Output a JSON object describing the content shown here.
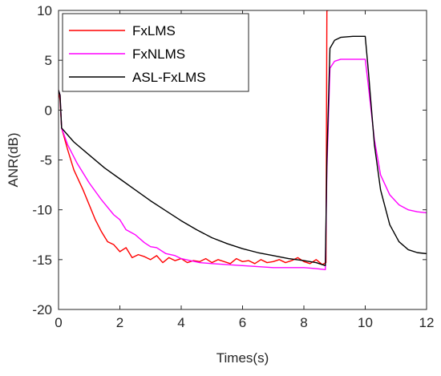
{
  "chart_data": {
    "type": "line",
    "xlabel": "Times(s)",
    "ylabel": "ANR(dB)",
    "xlim": [
      0,
      12
    ],
    "ylim": [
      -20,
      10
    ],
    "xticks": [
      0,
      2,
      4,
      6,
      8,
      10,
      12
    ],
    "yticks": [
      -20,
      -15,
      -10,
      -5,
      0,
      5,
      10
    ],
    "xtick_labels": [
      "0",
      "2",
      "4",
      "6",
      "8",
      "10",
      "12"
    ],
    "ytick_labels": [
      "-20",
      "-15",
      "-10",
      "-5",
      "0",
      "5",
      "10"
    ],
    "grid": false,
    "legend_position": "top-left",
    "series": [
      {
        "name": "FxLMS",
        "color": "#ff0000",
        "x": [
          0,
          0.05,
          0.1,
          0.3,
          0.5,
          0.8,
          1.0,
          1.2,
          1.4,
          1.6,
          1.8,
          2.0,
          2.2,
          2.4,
          2.6,
          2.8,
          3.0,
          3.2,
          3.4,
          3.6,
          3.8,
          4.0,
          4.2,
          4.4,
          4.6,
          4.8,
          5.0,
          5.2,
          5.4,
          5.6,
          5.8,
          6.0,
          6.2,
          6.4,
          6.6,
          6.8,
          7.0,
          7.2,
          7.4,
          7.6,
          7.8,
          8.0,
          8.2,
          8.4,
          8.6,
          8.72,
          8.75,
          8.8
        ],
        "y": [
          2,
          1,
          -1.8,
          -4,
          -6,
          -8,
          -9.5,
          -11,
          -12.2,
          -13.2,
          -13.5,
          -14.2,
          -13.8,
          -14.8,
          -14.5,
          -14.7,
          -15.0,
          -14.6,
          -15.3,
          -14.8,
          -15.1,
          -14.9,
          -15.3,
          -15.1,
          -15.2,
          -14.9,
          -15.3,
          -15.0,
          -15.2,
          -15.4,
          -14.9,
          -15.2,
          -15.1,
          -15.4,
          -15.0,
          -15.3,
          -15.2,
          -15.0,
          -15.3,
          -15.1,
          -14.8,
          -15.2,
          -15.4,
          -15.0,
          -15.5,
          -15.3,
          10,
          10
        ]
      },
      {
        "name": "FxNLMS",
        "color": "#ff00ff",
        "x": [
          0,
          0.05,
          0.1,
          0.3,
          0.6,
          1.0,
          1.4,
          1.8,
          2.0,
          2.2,
          2.5,
          2.8,
          3.0,
          3.2,
          3.5,
          3.8,
          4.0,
          4.3,
          4.6,
          5.0,
          5.5,
          6.0,
          6.5,
          7.0,
          7.5,
          8.0,
          8.4,
          8.7,
          8.75,
          8.85,
          9.0,
          9.2,
          9.6,
          10.0,
          10.1,
          10.3,
          10.5,
          10.8,
          11.1,
          11.4,
          11.7,
          12.0
        ],
        "y": [
          2,
          1.5,
          -1.8,
          -3.5,
          -5.3,
          -7.3,
          -9.0,
          -10.5,
          -11.0,
          -12.0,
          -12.5,
          -13.3,
          -13.7,
          -13.8,
          -14.4,
          -14.6,
          -14.9,
          -15.1,
          -15.3,
          -15.4,
          -15.5,
          -15.6,
          -15.7,
          -15.8,
          -15.8,
          -15.8,
          -15.9,
          -16.0,
          -6,
          4.2,
          4.9,
          5.1,
          5.1,
          5.1,
          2.5,
          -3.0,
          -6.5,
          -8.5,
          -9.5,
          -10.0,
          -10.2,
          -10.3
        ]
      },
      {
        "name": "ASL-FxLMS",
        "color": "#000000",
        "x": [
          0,
          0.05,
          0.1,
          0.5,
          1.0,
          1.5,
          2.0,
          2.5,
          3.0,
          3.5,
          4.0,
          4.5,
          5.0,
          5.5,
          6.0,
          6.5,
          7.0,
          7.5,
          8.0,
          8.4,
          8.7,
          8.75,
          8.85,
          9.0,
          9.2,
          9.6,
          10.0,
          10.1,
          10.3,
          10.5,
          10.8,
          11.1,
          11.4,
          11.7,
          12.0
        ],
        "y": [
          2,
          1.5,
          -1.8,
          -3.2,
          -4.5,
          -5.8,
          -6.9,
          -8.0,
          -9.1,
          -10.1,
          -11.1,
          -12.0,
          -12.8,
          -13.4,
          -13.9,
          -14.3,
          -14.6,
          -14.9,
          -15.1,
          -15.3,
          -15.6,
          -5,
          6.2,
          7.0,
          7.3,
          7.4,
          7.4,
          4.0,
          -3.5,
          -8.0,
          -11.5,
          -13.2,
          -14.0,
          -14.3,
          -14.4
        ]
      }
    ]
  }
}
